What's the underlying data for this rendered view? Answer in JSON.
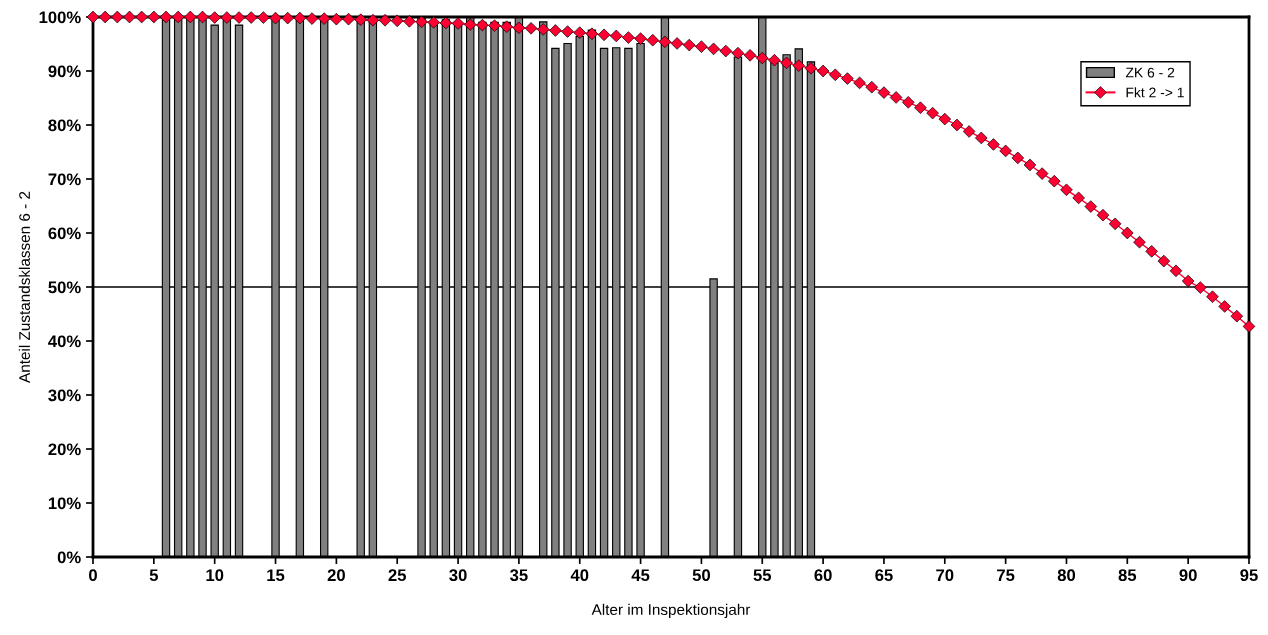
{
  "chart_data": {
    "type": "bar",
    "xlabel": "Alter im Inspektionsjahr",
    "ylabel": "Anteil Zustandsklassen 6 - 2",
    "xlim": [
      0,
      95
    ],
    "xticks": [
      0,
      5,
      10,
      15,
      20,
      25,
      30,
      35,
      40,
      45,
      50,
      55,
      60,
      65,
      70,
      75,
      80,
      85,
      90,
      95
    ],
    "ylim": [
      0,
      100
    ],
    "yticks": [
      {
        "value": 0,
        "label": "0%"
      },
      {
        "value": 10,
        "label": "10%"
      },
      {
        "value": 20,
        "label": "20%"
      },
      {
        "value": 30,
        "label": "30%"
      },
      {
        "value": 40,
        "label": "40%"
      },
      {
        "value": 50,
        "label": "50%"
      },
      {
        "value": 60,
        "label": "60%"
      },
      {
        "value": 70,
        "label": "70%"
      },
      {
        "value": 80,
        "label": "80%"
      },
      {
        "value": 90,
        "label": "90%"
      },
      {
        "value": 100,
        "label": "100%"
      }
    ],
    "grid": false,
    "legend": "top right",
    "ref_lines": [
      {
        "axis": "y",
        "value": 50,
        "color": "#000000"
      }
    ],
    "series": [
      {
        "name": "ZK 6 - 2",
        "color": "#808080",
        "x": [
          6,
          7,
          8,
          9,
          10,
          11,
          12,
          15,
          17,
          19,
          22,
          23,
          27,
          28,
          29,
          30,
          31,
          32,
          33,
          34,
          35,
          37,
          38,
          39,
          40,
          41,
          42,
          43,
          44,
          45,
          47,
          51,
          53,
          55,
          56,
          57,
          58,
          59
        ],
        "values": [
          100,
          100,
          100,
          99.5,
          98.5,
          100,
          98.5,
          100,
          100,
          99.5,
          100,
          99.5,
          100,
          99,
          99.5,
          99,
          100,
          99,
          99,
          99,
          100,
          99.1,
          94.2,
          95.1,
          96.4,
          97.6,
          94.2,
          94.3,
          94.2,
          95.1,
          100,
          51.5,
          92.6,
          100,
          91.5,
          93,
          94.1,
          91.7
        ]
      },
      {
        "type": "line",
        "name": "Fkt 2 -> 1",
        "color": "#ff0033",
        "marker": "diamond",
        "line_style": "solid",
        "x": [
          0,
          1,
          2,
          3,
          4,
          5,
          6,
          7,
          8,
          9,
          10,
          11,
          12,
          13,
          14,
          15,
          16,
          17,
          18,
          19,
          20,
          21,
          22,
          23,
          24,
          25,
          26,
          27,
          28,
          29,
          30,
          31,
          32,
          33,
          34,
          35,
          36,
          37,
          38,
          39,
          40,
          41,
          42,
          43,
          44,
          45,
          46,
          47,
          48,
          49,
          50,
          51,
          52,
          53,
          54,
          55,
          56,
          57,
          58,
          59,
          60,
          61,
          62,
          63,
          64,
          65,
          66,
          67,
          68,
          69,
          70,
          71,
          72,
          73,
          74,
          75,
          76,
          77,
          78,
          79,
          80,
          81,
          82,
          83,
          84,
          85,
          86,
          87,
          88,
          89,
          90,
          91,
          92,
          93,
          94,
          95
        ],
        "values": [
          100,
          100,
          100,
          100,
          100,
          100,
          100,
          100,
          100,
          100,
          99.9,
          99.9,
          99.9,
          99.9,
          99.9,
          99.8,
          99.8,
          99.8,
          99.7,
          99.7,
          99.6,
          99.6,
          99.5,
          99.4,
          99.4,
          99.3,
          99.2,
          99.1,
          99.0,
          98.9,
          98.8,
          98.6,
          98.5,
          98.4,
          98.2,
          98.0,
          97.9,
          97.7,
          97.5,
          97.3,
          97.1,
          96.9,
          96.7,
          96.5,
          96.2,
          96.0,
          95.7,
          95.4,
          95.1,
          94.8,
          94.5,
          94.1,
          93.7,
          93.3,
          92.9,
          92.4,
          92.0,
          91.5,
          91.0,
          90.5,
          90.0,
          89.3,
          88.6,
          87.8,
          87.0,
          86.0,
          85.1,
          84.2,
          83.2,
          82.2,
          81.1,
          80.0,
          78.8,
          77.6,
          76.4,
          75.2,
          73.9,
          72.6,
          71.0,
          69.6,
          68.0,
          66.5,
          64.9,
          63.3,
          61.7,
          60.0,
          58.3,
          56.6,
          54.8,
          53.0,
          51.1,
          49.9,
          48.2,
          46.4,
          44.6,
          42.7
        ]
      }
    ]
  }
}
